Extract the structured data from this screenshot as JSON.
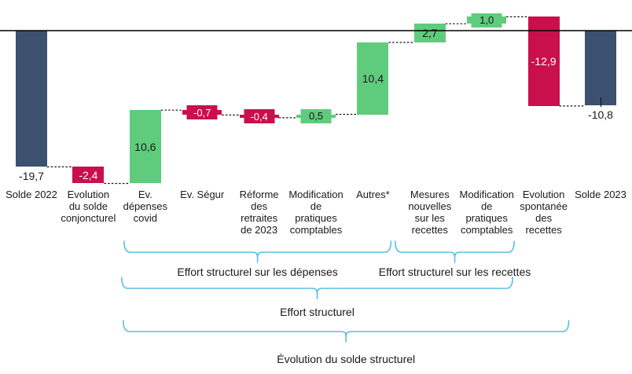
{
  "chart_data": {
    "type": "bar",
    "subtype": "waterfall",
    "title": "",
    "xlabel": "",
    "ylabel": "",
    "legend": "none",
    "grid": false,
    "axis": {
      "zero_line": true,
      "approx_value_range": [
        -22.1,
        2.0
      ]
    },
    "colors": {
      "total": "#3B516F",
      "increase": "#5FCB7D",
      "decrease": "#C9104C",
      "brace": "#58BFE8",
      "connector": "#111111",
      "axis_line": "#000000",
      "label_dark": "#1a1a1a",
      "label_light": "#ffffff"
    },
    "categories": [
      "Solde 2022",
      "Evolution du solde conjoncturel",
      "Ev. dépenses covid",
      "Ev. Ségur",
      "Réforme des retraites de 2023",
      "Modification de pratiques comptables",
      "Autres*",
      "Mesures nouvelles sur les recettes",
      "Modification de pratiques comptables",
      "Evolution spontanée des recettes",
      "Solde 2023"
    ],
    "series": [
      {
        "name": "Évolution du solde",
        "values": [
          -19.7,
          -2.4,
          10.6,
          -0.7,
          -0.4,
          0.5,
          10.4,
          2.7,
          1.0,
          -12.9,
          -10.8
        ]
      }
    ],
    "bars": [
      {
        "id": "solde-2022",
        "label": "Solde 2022",
        "label_lines": [
          "Solde 2022"
        ],
        "value": -19.7,
        "value_label": "-19,7",
        "role": "total",
        "label_style": "below",
        "label_color": "#1a1a1a"
      },
      {
        "id": "evolution-solde-conjoncturel",
        "label": "Evolution du solde conjoncturel",
        "label_lines": [
          "Evolution",
          "du solde",
          "conjoncturel"
        ],
        "value": -2.4,
        "value_label": "-2,4",
        "role": "decrease",
        "label_style": "inside",
        "label_color": "#ffffff"
      },
      {
        "id": "ev-depenses-covid",
        "label": "Ev. dépenses covid",
        "label_lines": [
          "Ev.",
          "dépenses",
          "covid"
        ],
        "value": 10.6,
        "value_label": "10,6",
        "role": "increase",
        "label_style": "inside",
        "label_color": "#1a1a1a"
      },
      {
        "id": "ev-segur",
        "label": "Ev. Ségur",
        "label_lines": [
          "Ev. Ségur"
        ],
        "value": -0.7,
        "value_label": "-0,7",
        "role": "decrease",
        "label_style": "chip",
        "label_color": "#ffffff"
      },
      {
        "id": "reforme-retraites-2023",
        "label": "Réforme des retraites de 2023",
        "label_lines": [
          "Réforme",
          "des",
          "retraites",
          "de 2023"
        ],
        "value": -0.4,
        "value_label": "-0,4",
        "role": "decrease",
        "label_style": "chip",
        "label_color": "#ffffff"
      },
      {
        "id": "modification-pratiques-comptables-depenses",
        "label": "Modification de pratiques comptables",
        "label_lines": [
          "Modification",
          "de",
          "pratiques",
          "comptables"
        ],
        "value": 0.5,
        "value_label": "0,5",
        "role": "increase",
        "label_style": "chip",
        "label_color": "#1a1a1a"
      },
      {
        "id": "autres",
        "label": "Autres*",
        "label_lines": [
          "Autres*"
        ],
        "value": 10.4,
        "value_label": "10,4",
        "role": "increase",
        "label_style": "inside",
        "label_color": "#1a1a1a"
      },
      {
        "id": "mesures-nouvelles-recettes",
        "label": "Mesures nouvelles sur les recettes",
        "label_lines": [
          "Mesures",
          "nouvelles",
          "sur les",
          "recettes"
        ],
        "value": 2.7,
        "value_label": "2,7",
        "role": "increase",
        "label_style": "inside",
        "label_color": "#1a1a1a"
      },
      {
        "id": "modification-pratiques-comptables-recettes",
        "label": "Modification de pratiques comptables",
        "label_lines": [
          "Modification",
          "de",
          "pratiques",
          "comptables"
        ],
        "value": 1.0,
        "value_label": "1,0",
        "role": "increase",
        "label_style": "chip",
        "label_color": "#1a1a1a"
      },
      {
        "id": "evolution-spontanee-recettes",
        "label": "Evolution spontanée des recettes",
        "label_lines": [
          "Evolution",
          "spontanée",
          "des",
          "recettes"
        ],
        "value": -12.9,
        "value_label": "-12,9",
        "role": "decrease",
        "label_style": "inside",
        "label_color": "#ffffff"
      },
      {
        "id": "solde-2023",
        "label": "Solde 2023",
        "label_lines": [
          "Solde 2023"
        ],
        "value": -10.8,
        "value_label": "-10,8",
        "role": "total",
        "label_style": "below",
        "label_color": "#1a1a1a",
        "leader_line": true
      }
    ],
    "braces": [
      {
        "id": "effort-structurel-depenses",
        "label": "Effort structurel sur les dépenses",
        "from_index": 2,
        "to_index": 6
      },
      {
        "id": "effort-structurel-recettes",
        "label": "Effort structurel sur les recettes",
        "from_index": 7,
        "to_index": 8
      },
      {
        "id": "effort-structurel",
        "label": "Effort structurel",
        "from_index": 2,
        "to_index": 8
      },
      {
        "id": "evolution-solde-structurel",
        "label": "Évolution du solde structurel",
        "from_index": 2,
        "to_index": 9
      }
    ]
  }
}
